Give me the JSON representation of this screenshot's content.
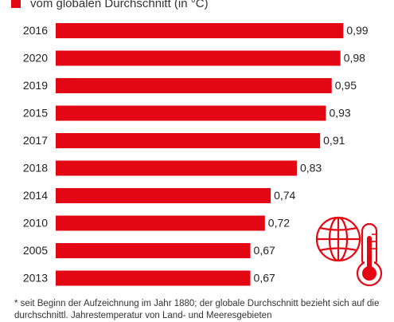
{
  "legend": {
    "label": "vom globalen Durchschnitt (in °C)",
    "color": "#e30613"
  },
  "footnote": "* seit Beginn der Aufzeichnung im Jahr 1880; der globale Durchschnitt bezieht sich auf die durchschnittl. Jahrestemperatur von Land- und Meeresgebieten",
  "icons": [
    "globe-icon",
    "thermometer-icon"
  ],
  "chart_data": {
    "type": "bar",
    "orientation": "horizontal",
    "categories": [
      "2016",
      "2020",
      "2019",
      "2015",
      "2017",
      "2018",
      "2014",
      "2010",
      "2005",
      "2013"
    ],
    "values": [
      0.99,
      0.98,
      0.95,
      0.93,
      0.91,
      0.83,
      0.74,
      0.72,
      0.67,
      0.67
    ],
    "value_labels": [
      "0,99",
      "0,98",
      "0,95",
      "0,93",
      "0,91",
      "0,83",
      "0,74",
      "0,72",
      "0,67",
      "0,67"
    ],
    "series": [
      {
        "name": "vom globalen Durchschnitt (in °C)",
        "values": [
          0.99,
          0.98,
          0.95,
          0.93,
          0.91,
          0.83,
          0.74,
          0.72,
          0.67,
          0.67
        ]
      }
    ],
    "xlim": [
      0,
      1.0
    ],
    "grid": false,
    "color": "#e30613"
  }
}
